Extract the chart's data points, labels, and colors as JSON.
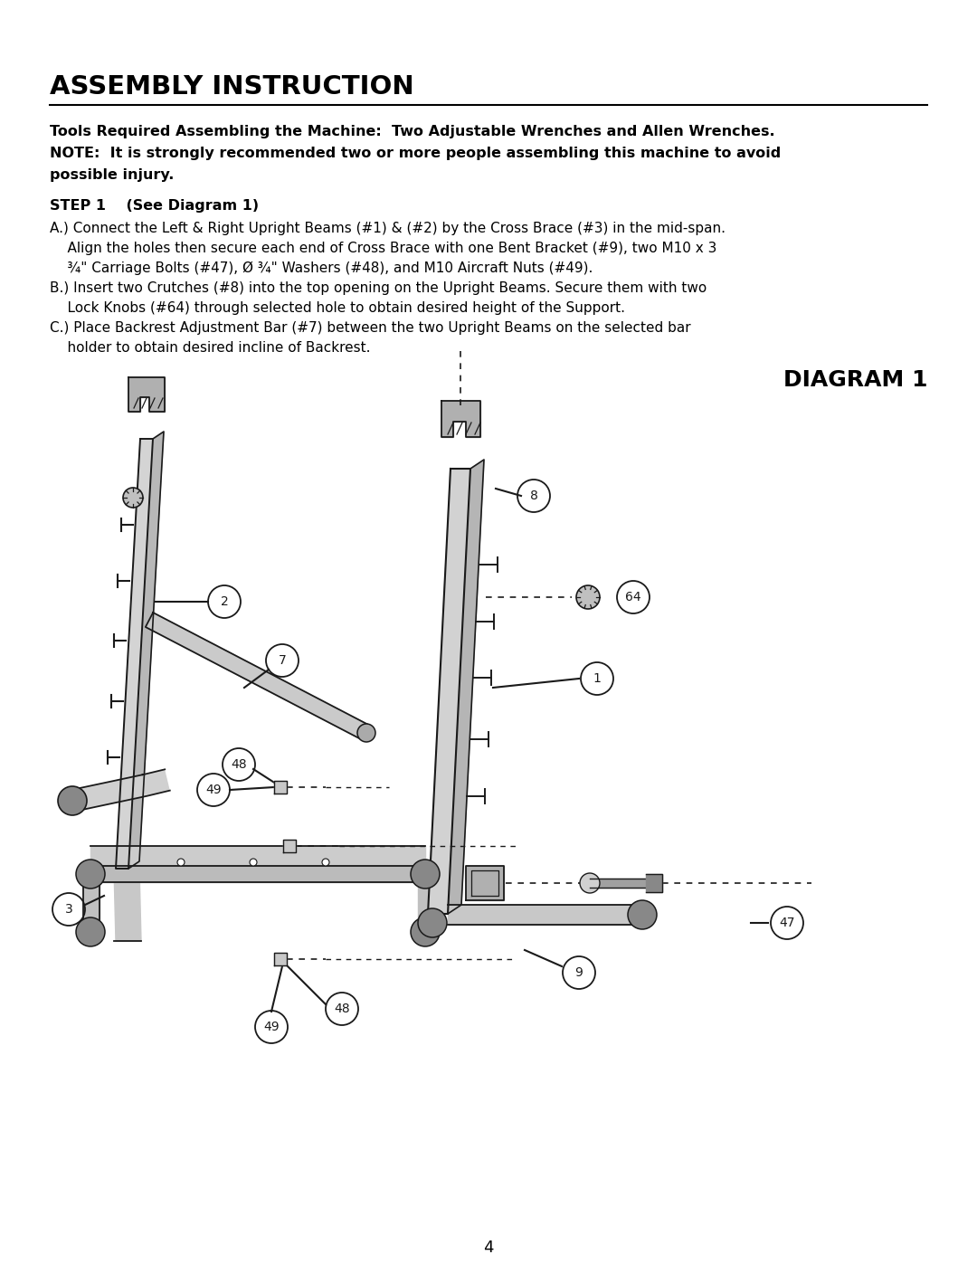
{
  "title": "ASSEMBLY INSTRUCTION",
  "bold_text_1": "Tools Required Assembling the Machine:  Two Adjustable Wrenches and Allen Wrenches.",
  "bold_text_2": "NOTE:  It is strongly recommended two or more people assembling this machine to avoid",
  "bold_text_3": "possible injury.",
  "step1_header": "STEP 1    (See Diagram 1)",
  "step1_a1": "A.) Connect the Left & Right Upright Beams (#1) & (#2) by the Cross Brace (#3) in the mid-span.",
  "step1_a2": "    Align the holes then secure each end of Cross Brace with one Bent Bracket (#9), two M10 x 3",
  "step1_a3": "    ¾\" Carriage Bolts (#47), Ø ¾\" Washers (#48), and M10 Aircraft Nuts (#49).",
  "step1_b1": "B.) Insert two Crutches (#8) into the top opening on the Upright Beams. Secure them with two",
  "step1_b2": "    Lock Knobs (#64) through selected hole to obtain desired height of the Support.",
  "step1_c1": "C.) Place Backrest Adjustment Bar (#7) between the two Upright Beams on the selected bar",
  "step1_c2": "    holder to obtain desired incline of Backrest.",
  "diagram_title": "DIAGRAM 1",
  "page_number": "4",
  "bg_color": "#ffffff",
  "text_color": "#000000",
  "line_color": "#1a1a1a"
}
